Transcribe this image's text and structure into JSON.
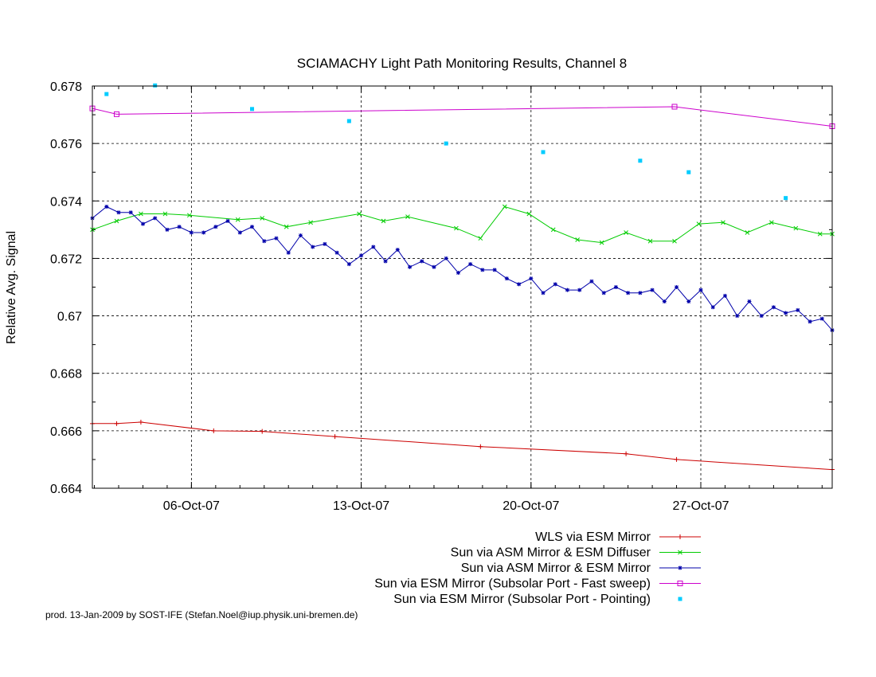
{
  "chart_data": {
    "type": "line",
    "title": "SCIAMACHY Light Path Monitoring Results, Channel 8",
    "ylabel": "Relative Avg. Signal",
    "xlabel": "",
    "xlim": [
      "2007-10-01T22:00",
      "2007-11-01T10:00"
    ],
    "ylim": [
      0.664,
      0.678
    ],
    "yticks": [
      0.664,
      0.666,
      0.668,
      0.67,
      0.672,
      0.674,
      0.676,
      0.678
    ],
    "ytick_labels": [
      "0.664",
      "0.666",
      "0.668",
      "0.67",
      "0.672",
      "0.674",
      "0.676",
      "0.678"
    ],
    "xticks": [
      "2007-10-06",
      "2007-10-13",
      "2007-10-20",
      "2007-10-27"
    ],
    "xtick_labels": [
      "06-Oct-07",
      "13-Oct-07",
      "20-Oct-07",
      "27-Oct-07"
    ],
    "grid": true,
    "legend_position": "bottom-right",
    "series": [
      {
        "name": "WLS via ESM Mirror",
        "color": "#cc0000",
        "style": "linespoints",
        "marker": "plus",
        "x": [
          "2007-10-01T22:00",
          "2007-10-02T22:00",
          "2007-10-03T22:00",
          "2007-10-06T22:00",
          "2007-10-08T22:00",
          "2007-10-11T22:00",
          "2007-10-17T22:00",
          "2007-10-23T22:00",
          "2007-10-26T00:00",
          "2007-11-01T10:00"
        ],
        "values": [
          0.66625,
          0.66625,
          0.6663,
          0.666,
          0.66598,
          0.6658,
          0.66545,
          0.6652,
          0.665,
          0.66465
        ]
      },
      {
        "name": "Sun via ASM Mirror & ESM Diffuser",
        "color": "#00cc00",
        "style": "linespoints",
        "marker": "x",
        "x": [
          "2007-10-01T22:00",
          "2007-10-02T22:00",
          "2007-10-03T22:00",
          "2007-10-04T22:00",
          "2007-10-05T22:00",
          "2007-10-07T22:00",
          "2007-10-08T22:00",
          "2007-10-09T22:00",
          "2007-10-10T22:00",
          "2007-10-12T22:00",
          "2007-10-13T22:00",
          "2007-10-14T22:00",
          "2007-10-16T22:00",
          "2007-10-17T22:00",
          "2007-10-18T22:00",
          "2007-10-19T22:00",
          "2007-10-20T22:00",
          "2007-10-21T22:00",
          "2007-10-22T22:00",
          "2007-10-23T22:00",
          "2007-10-24T22:00",
          "2007-10-25T22:00",
          "2007-10-26T22:00",
          "2007-10-27T22:00",
          "2007-10-28T22:00",
          "2007-10-29T22:00",
          "2007-10-30T22:00",
          "2007-10-31T22:00",
          "2007-11-01T10:00"
        ],
        "values": [
          0.673,
          0.6733,
          0.67355,
          0.67355,
          0.6735,
          0.67335,
          0.6734,
          0.6731,
          0.67325,
          0.67355,
          0.6733,
          0.67345,
          0.67305,
          0.6727,
          0.6738,
          0.67355,
          0.673,
          0.67265,
          0.67255,
          0.6729,
          0.6726,
          0.6726,
          0.6732,
          0.67325,
          0.6729,
          0.67325,
          0.67305,
          0.67285,
          0.67285
        ]
      },
      {
        "name": "Sun via ASM Mirror & ESM Mirror",
        "color": "#0000aa",
        "style": "linespoints",
        "marker": "star",
        "x": [
          "2007-10-01T22:00",
          "2007-10-02T12:00",
          "2007-10-03T00:00",
          "2007-10-03T12:00",
          "2007-10-04T00:00",
          "2007-10-04T12:00",
          "2007-10-05T00:00",
          "2007-10-05T12:00",
          "2007-10-06T00:00",
          "2007-10-06T12:00",
          "2007-10-07T00:00",
          "2007-10-07T12:00",
          "2007-10-08T00:00",
          "2007-10-08T12:00",
          "2007-10-09T00:00",
          "2007-10-09T12:00",
          "2007-10-10T00:00",
          "2007-10-10T12:00",
          "2007-10-11T00:00",
          "2007-10-11T12:00",
          "2007-10-12T00:00",
          "2007-10-12T12:00",
          "2007-10-13T00:00",
          "2007-10-13T12:00",
          "2007-10-14T00:00",
          "2007-10-14T12:00",
          "2007-10-15T00:00",
          "2007-10-15T12:00",
          "2007-10-16T00:00",
          "2007-10-16T12:00",
          "2007-10-17T00:00",
          "2007-10-17T12:00",
          "2007-10-18T00:00",
          "2007-10-18T12:00",
          "2007-10-19T00:00",
          "2007-10-19T12:00",
          "2007-10-20T00:00",
          "2007-10-20T12:00",
          "2007-10-21T00:00",
          "2007-10-21T12:00",
          "2007-10-22T00:00",
          "2007-10-22T12:00",
          "2007-10-23T00:00",
          "2007-10-23T12:00",
          "2007-10-24T00:00",
          "2007-10-24T12:00",
          "2007-10-25T00:00",
          "2007-10-25T12:00",
          "2007-10-26T00:00",
          "2007-10-26T12:00",
          "2007-10-27T00:00",
          "2007-10-27T12:00",
          "2007-10-28T00:00",
          "2007-10-28T12:00",
          "2007-10-29T00:00",
          "2007-10-29T12:00",
          "2007-10-30T00:00",
          "2007-10-30T12:00",
          "2007-10-31T00:00",
          "2007-10-31T12:00",
          "2007-11-01T00:00",
          "2007-11-01T10:00"
        ],
        "values": [
          0.6734,
          0.6738,
          0.6736,
          0.6736,
          0.6732,
          0.6734,
          0.673,
          0.6731,
          0.6729,
          0.6729,
          0.6731,
          0.6733,
          0.6729,
          0.6731,
          0.6726,
          0.6727,
          0.6722,
          0.6728,
          0.6724,
          0.6725,
          0.6722,
          0.6718,
          0.6721,
          0.6724,
          0.6719,
          0.6723,
          0.6717,
          0.6719,
          0.6717,
          0.672,
          0.6715,
          0.6718,
          0.6716,
          0.6716,
          0.6713,
          0.6711,
          0.6713,
          0.6708,
          0.6711,
          0.6709,
          0.6709,
          0.6712,
          0.6708,
          0.671,
          0.6708,
          0.6708,
          0.6709,
          0.6705,
          0.671,
          0.6705,
          0.6709,
          0.6703,
          0.6707,
          0.67,
          0.6705,
          0.67,
          0.6703,
          0.6701,
          0.6702,
          0.6698,
          0.6699,
          0.6695
        ]
      },
      {
        "name": "Sun via ESM Mirror (Subsolar Port - Fast sweep)",
        "color": "#cc00cc",
        "style": "linespoints",
        "marker": "square",
        "x": [
          "2007-10-01T22:00",
          "2007-10-02T22:00",
          "2007-10-25T22:00",
          "2007-11-01T10:00"
        ],
        "values": [
          0.67722,
          0.67702,
          0.67728,
          0.6766
        ]
      },
      {
        "name": "Sun via ESM Mirror (Subsolar Port - Pointing)",
        "color": "#00ccff",
        "style": "points",
        "marker": "dot",
        "x": [
          "2007-10-02T12:00",
          "2007-10-04T12:00",
          "2007-10-08T12:00",
          "2007-10-12T12:00",
          "2007-10-16T12:00",
          "2007-10-20T12:00",
          "2007-10-24T12:00",
          "2007-10-26T12:00",
          "2007-10-30T12:00"
        ],
        "values": [
          0.67772,
          0.67802,
          0.6772,
          0.67678,
          0.676,
          0.6757,
          0.6754,
          0.675,
          0.6741
        ]
      }
    ]
  },
  "footer": "prod. 13-Jan-2009 by SOST-IFE (Stefan.Noel@iup.physik.uni-bremen.de)"
}
